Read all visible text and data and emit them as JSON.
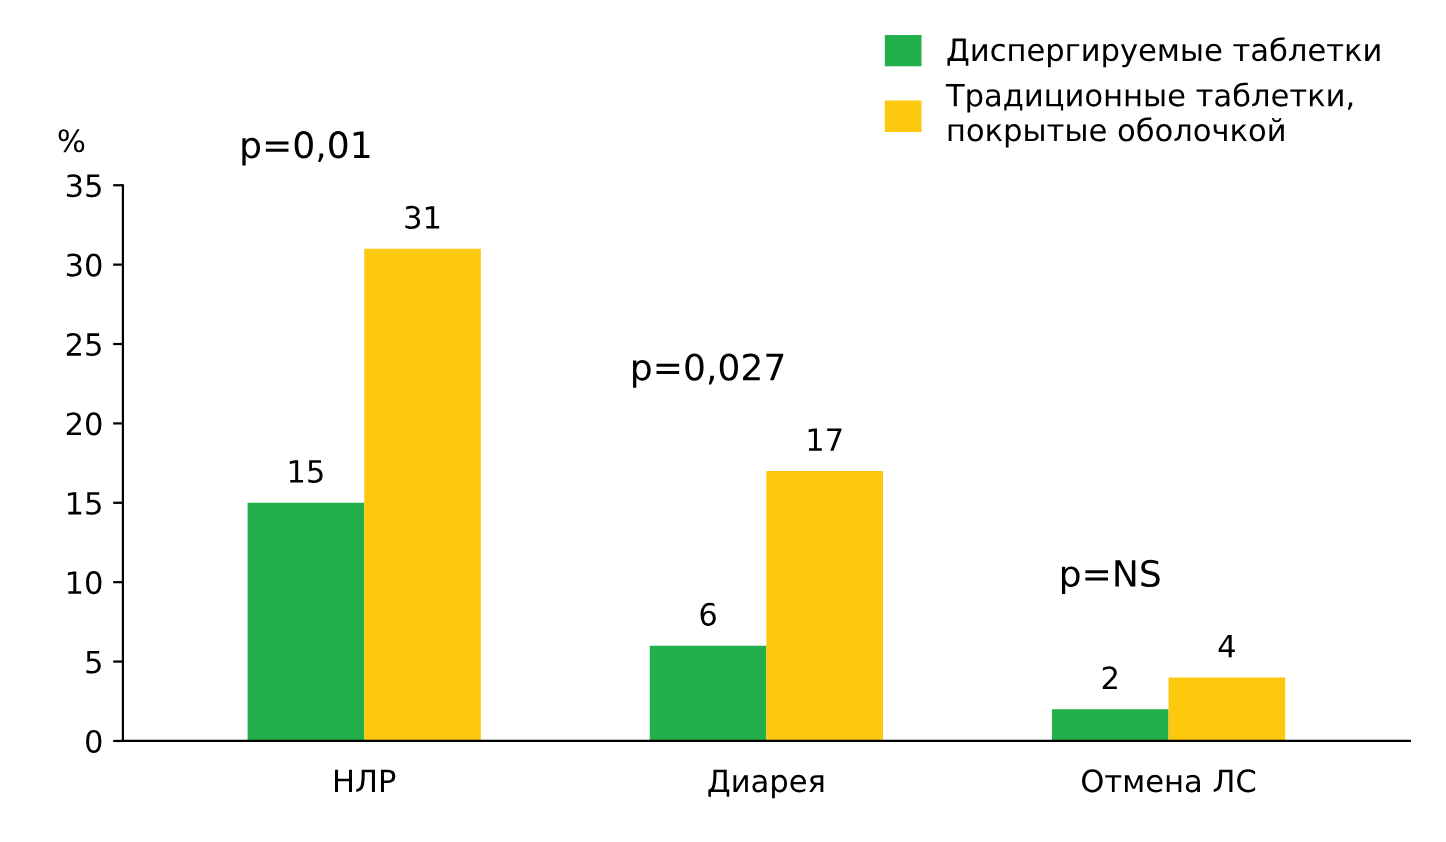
{
  "chart_data": {
    "type": "bar",
    "ylabel": "%",
    "categories": [
      "НЛР",
      "Диарея",
      "Отмена ЛС"
    ],
    "series": [
      {
        "name": "Диспергируемые таблетки",
        "color": "#23b04b",
        "values": [
          15,
          6,
          2
        ]
      },
      {
        "name": "Традиционные таблетки,\nпокрытые оболочкой",
        "color": "#fdc90f",
        "values": [
          31,
          17,
          4
        ]
      }
    ],
    "ylim": [
      0,
      35
    ],
    "yticks": [
      0,
      5,
      10,
      15,
      20,
      25,
      30,
      35
    ],
    "data_labels": true,
    "grid": false,
    "legend": "top right",
    "annotations": [
      "p=0,01",
      "p=0,027",
      "p=NS"
    ]
  }
}
